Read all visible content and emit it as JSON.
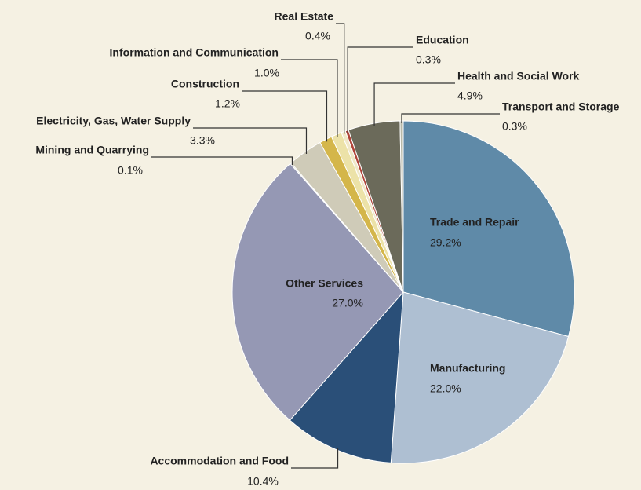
{
  "chart_data": {
    "type": "pie",
    "categories": [
      "Trade and Repair",
      "Manufacturing",
      "Accommodation and Food",
      "Other Services",
      "Mining and Quarrying",
      "Electricity, Gas, Water Supply",
      "Construction",
      "Information and Communication",
      "Real Estate",
      "Education",
      "Health and Social Work",
      "Transport and Storage"
    ],
    "values": [
      29.2,
      22.0,
      10.4,
      27.0,
      0.1,
      3.3,
      1.2,
      1.0,
      0.4,
      0.3,
      4.9,
      0.3
    ],
    "value_labels": [
      "29.2%",
      "22.0%",
      "10.4%",
      "27.0%",
      "0.1%",
      "3.3%",
      "1.2%",
      "1.0%",
      "0.4%",
      "0.3%",
      "4.9%",
      "0.3%"
    ],
    "colors": [
      "#5f8aa8",
      "#aebfd2",
      "#2a4f78",
      "#9598b4",
      "#cfd0c0",
      "#cfcbb8",
      "#d4b64a",
      "#ece2a8",
      "#f0e8c8",
      "#b0453a",
      "#6b6a5a",
      "#b8b9a8"
    ]
  }
}
